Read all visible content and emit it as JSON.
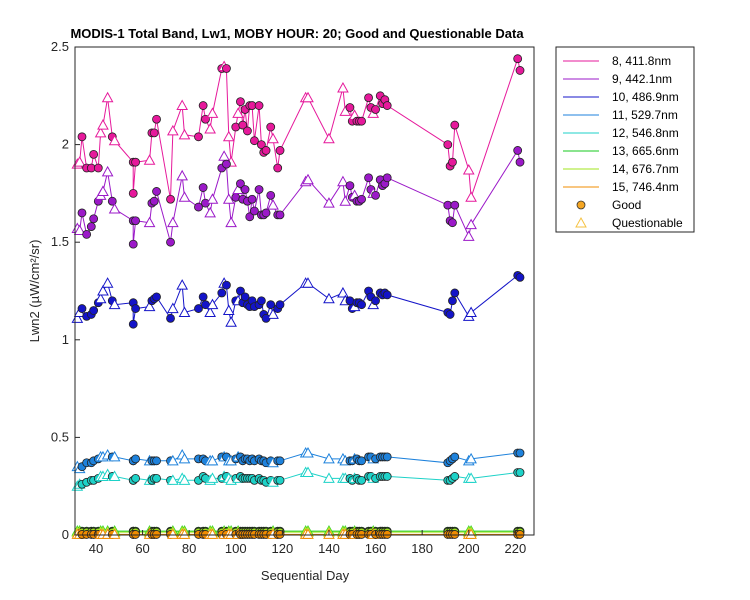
{
  "chart_data": {
    "type": "line",
    "title": "MODIS-1 Total Band, Lw1, MOBY HOUR: 20;  Good and Questionable Data",
    "xlabel": "Sequential Day",
    "ylabel": "Lwn2 (µW/cm²/sr)",
    "xlim": [
      31,
      228
    ],
    "ylim": [
      0,
      2.5
    ],
    "xticks": [
      40,
      60,
      80,
      100,
      120,
      140,
      160,
      180,
      200,
      220
    ],
    "yticks": [
      0,
      0.5,
      1,
      1.5,
      2,
      2.5
    ],
    "ytick_labels": [
      "0",
      "0.5",
      "1",
      "1.5",
      "2",
      "2.5"
    ],
    "grid": false,
    "legend_position": "outside-top-right",
    "legend": [
      {
        "label": "8, 411.8nm",
        "color": "#E6199B"
      },
      {
        "label": "9, 442.1nm",
        "color": "#9B19C8"
      },
      {
        "label": "10, 486.9nm",
        "color": "#1414C8"
      },
      {
        "label": "11, 529.7nm",
        "color": "#1E82DC"
      },
      {
        "label": "12, 546.8nm",
        "color": "#1ED2C8"
      },
      {
        "label": "13, 665.6nm",
        "color": "#14C81E"
      },
      {
        "label": "14, 676.7nm",
        "color": "#A0E61E"
      },
      {
        "label": "15, 746.4nm",
        "color": "#F08C00"
      },
      {
        "label": "Good",
        "marker": "circle",
        "color": "#F5A623"
      },
      {
        "label": "Questionable",
        "marker": "triangle",
        "color": "#F5C242"
      }
    ],
    "x": [
      32,
      33,
      34,
      36,
      38,
      39,
      41,
      42,
      43,
      45,
      47,
      48,
      56,
      56,
      57,
      63,
      64,
      65,
      66,
      72,
      73,
      77,
      78,
      84,
      86,
      87,
      89,
      90,
      94,
      95,
      96,
      97,
      98,
      100,
      101,
      102,
      103,
      104,
      105,
      106,
      107,
      108,
      110,
      111,
      112,
      113,
      115,
      116,
      118,
      119,
      130,
      131,
      140,
      146,
      147,
      149,
      150,
      151,
      152,
      153,
      154,
      157,
      158,
      159,
      160,
      162,
      163,
      164,
      165,
      191,
      192,
      193,
      194,
      200,
      201,
      221,
      222
    ],
    "quality": [
      "q",
      "q",
      "g",
      "g",
      "g",
      "g",
      "g",
      "q",
      "q",
      "q",
      "g",
      "q",
      "g",
      "g",
      "g",
      "q",
      "g",
      "g",
      "g",
      "g",
      "q",
      "q",
      "q",
      "g",
      "g",
      "g",
      "q",
      "q",
      "g",
      "q",
      "g",
      "q",
      "q",
      "g",
      "q",
      "g",
      "g",
      "g",
      "g",
      "g",
      "g",
      "g",
      "g",
      "g",
      "g",
      "g",
      "g",
      "q",
      "g",
      "g",
      "q",
      "q",
      "q",
      "q",
      "q",
      "g",
      "g",
      "q",
      "g",
      "g",
      "g",
      "g",
      "g",
      "q",
      "g",
      "g",
      "g",
      "g",
      "g",
      "g",
      "g",
      "g",
      "g",
      "q",
      "q",
      "g",
      "g"
    ],
    "series": [
      {
        "name": "8, 411.8nm",
        "values": [
          1.9,
          1.91,
          2.04,
          1.88,
          1.88,
          1.95,
          1.88,
          2.06,
          2.1,
          2.24,
          2.04,
          2.02,
          1.91,
          1.75,
          1.91,
          1.92,
          2.06,
          2.06,
          2.13,
          1.72,
          2.07,
          2.2,
          2.05,
          2.04,
          2.2,
          2.13,
          2.08,
          2.16,
          2.39,
          2.4,
          2.39,
          2.04,
          1.91,
          2.09,
          2.16,
          2.22,
          2.1,
          2.18,
          2.07,
          2.2,
          2.2,
          2.02,
          2.2,
          2.0,
          1.96,
          1.97,
          2.09,
          2.03,
          1.88,
          1.97,
          2.24,
          2.24,
          2.03,
          2.29,
          2.17,
          2.19,
          2.12,
          2.15,
          2.12,
          2.12,
          2.12,
          2.24,
          2.19,
          2.16,
          2.18,
          2.25,
          2.21,
          2.23,
          2.2,
          2.0,
          1.89,
          1.91,
          2.1,
          1.87,
          1.73,
          2.44,
          2.38
        ]
      },
      {
        "name": "9, 442.1nm",
        "values": [
          1.57,
          1.56,
          1.65,
          1.54,
          1.58,
          1.62,
          1.71,
          1.74,
          1.76,
          1.86,
          1.71,
          1.67,
          1.61,
          1.49,
          1.61,
          1.6,
          1.7,
          1.71,
          1.76,
          1.5,
          1.6,
          1.84,
          1.73,
          1.68,
          1.78,
          1.7,
          1.65,
          1.72,
          1.88,
          1.94,
          1.9,
          1.72,
          1.6,
          1.73,
          1.77,
          1.8,
          1.72,
          1.77,
          1.71,
          1.63,
          1.72,
          1.66,
          1.77,
          1.64,
          1.64,
          1.65,
          1.74,
          1.69,
          1.64,
          1.64,
          1.81,
          1.82,
          1.7,
          1.81,
          1.71,
          1.79,
          1.73,
          1.74,
          1.71,
          1.71,
          1.72,
          1.83,
          1.77,
          1.75,
          1.74,
          1.82,
          1.79,
          1.8,
          1.83,
          1.69,
          1.61,
          1.6,
          1.69,
          1.53,
          1.59,
          1.97,
          1.91
        ]
      },
      {
        "name": "10, 486.9nm",
        "values": [
          1.11,
          1.14,
          1.16,
          1.12,
          1.13,
          1.15,
          1.19,
          1.21,
          1.25,
          1.29,
          1.2,
          1.18,
          1.19,
          1.08,
          1.16,
          1.17,
          1.2,
          1.21,
          1.22,
          1.11,
          1.16,
          1.28,
          1.14,
          1.16,
          1.22,
          1.18,
          1.14,
          1.18,
          1.24,
          1.29,
          1.28,
          1.15,
          1.09,
          1.2,
          1.2,
          1.25,
          1.19,
          1.22,
          1.18,
          1.17,
          1.2,
          1.17,
          1.18,
          1.2,
          1.13,
          1.11,
          1.18,
          1.13,
          1.16,
          1.18,
          1.29,
          1.29,
          1.21,
          1.24,
          1.2,
          1.2,
          1.16,
          1.17,
          1.19,
          1.19,
          1.18,
          1.25,
          1.22,
          1.18,
          1.2,
          1.24,
          1.23,
          1.24,
          1.23,
          1.14,
          1.13,
          1.2,
          1.24,
          1.12,
          1.14,
          1.33,
          1.32
        ]
      },
      {
        "name": "11, 529.7nm",
        "values": [
          0.35,
          0.34,
          0.35,
          0.37,
          0.37,
          0.38,
          0.39,
          0.4,
          0.4,
          0.41,
          0.4,
          0.4,
          0.38,
          0.38,
          0.39,
          0.38,
          0.38,
          0.38,
          0.38,
          0.38,
          0.38,
          0.41,
          0.39,
          0.39,
          0.39,
          0.38,
          0.38,
          0.38,
          0.4,
          0.4,
          0.4,
          0.38,
          0.38,
          0.39,
          0.4,
          0.4,
          0.38,
          0.39,
          0.39,
          0.38,
          0.39,
          0.38,
          0.39,
          0.38,
          0.38,
          0.37,
          0.38,
          0.37,
          0.38,
          0.38,
          0.42,
          0.42,
          0.39,
          0.39,
          0.38,
          0.38,
          0.38,
          0.39,
          0.39,
          0.38,
          0.38,
          0.4,
          0.4,
          0.39,
          0.39,
          0.4,
          0.4,
          0.4,
          0.4,
          0.37,
          0.38,
          0.39,
          0.4,
          0.38,
          0.39,
          0.42,
          0.42
        ]
      },
      {
        "name": "12, 546.8nm",
        "values": [
          0.25,
          0.26,
          0.26,
          0.27,
          0.28,
          0.28,
          0.29,
          0.3,
          0.3,
          0.31,
          0.3,
          0.3,
          0.28,
          0.28,
          0.29,
          0.28,
          0.28,
          0.29,
          0.29,
          0.28,
          0.28,
          0.29,
          0.28,
          0.28,
          0.3,
          0.29,
          0.28,
          0.29,
          0.29,
          0.3,
          0.3,
          0.29,
          0.28,
          0.29,
          0.29,
          0.3,
          0.29,
          0.29,
          0.29,
          0.29,
          0.29,
          0.28,
          0.29,
          0.28,
          0.28,
          0.27,
          0.28,
          0.27,
          0.28,
          0.28,
          0.32,
          0.32,
          0.29,
          0.29,
          0.29,
          0.29,
          0.28,
          0.29,
          0.29,
          0.28,
          0.28,
          0.3,
          0.3,
          0.29,
          0.29,
          0.3,
          0.3,
          0.3,
          0.3,
          0.28,
          0.28,
          0.29,
          0.3,
          0.29,
          0.29,
          0.32,
          0.32
        ]
      },
      {
        "name": "13, 665.6nm",
        "values": [
          0.02,
          0.02,
          0.02,
          0.02,
          0.02,
          0.02,
          0.02,
          0.02,
          0.02,
          0.02,
          0.02,
          0.02,
          0.02,
          0.02,
          0.02,
          0.02,
          0.02,
          0.02,
          0.02,
          0.02,
          0.02,
          0.02,
          0.02,
          0.02,
          0.02,
          0.02,
          0.02,
          0.02,
          0.02,
          0.02,
          0.02,
          0.02,
          0.02,
          0.02,
          0.02,
          0.02,
          0.02,
          0.02,
          0.02,
          0.02,
          0.02,
          0.02,
          0.02,
          0.02,
          0.02,
          0.02,
          0.02,
          0.02,
          0.02,
          0.02,
          0.02,
          0.02,
          0.02,
          0.02,
          0.02,
          0.02,
          0.02,
          0.02,
          0.02,
          0.02,
          0.02,
          0.02,
          0.02,
          0.02,
          0.02,
          0.02,
          0.02,
          0.02,
          0.02,
          0.02,
          0.02,
          0.02,
          0.02,
          0.02,
          0.02,
          0.02,
          0.02
        ]
      },
      {
        "name": "14, 676.7nm",
        "values": [
          0.015,
          0.015,
          0.015,
          0.015,
          0.015,
          0.015,
          0.015,
          0.015,
          0.015,
          0.015,
          0.015,
          0.015,
          0.015,
          0.015,
          0.015,
          0.015,
          0.015,
          0.015,
          0.015,
          0.015,
          0.015,
          0.015,
          0.015,
          0.015,
          0.015,
          0.015,
          0.015,
          0.015,
          0.015,
          0.015,
          0.015,
          0.015,
          0.015,
          0.015,
          0.015,
          0.015,
          0.015,
          0.015,
          0.015,
          0.015,
          0.015,
          0.015,
          0.015,
          0.015,
          0.015,
          0.015,
          0.015,
          0.015,
          0.015,
          0.015,
          0.015,
          0.015,
          0.015,
          0.015,
          0.015,
          0.015,
          0.015,
          0.015,
          0.015,
          0.015,
          0.015,
          0.015,
          0.015,
          0.015,
          0.015,
          0.015,
          0.015,
          0.015,
          0.015,
          0.015,
          0.015,
          0.015,
          0.015,
          0.015,
          0.015,
          0.015,
          0.015
        ]
      },
      {
        "name": "15, 746.4nm",
        "values": [
          0.003,
          0.003,
          0.003,
          0.003,
          0.003,
          0.003,
          0.003,
          0.003,
          0.003,
          0.003,
          0.003,
          0.003,
          0.003,
          0.003,
          0.003,
          0.003,
          0.003,
          0.003,
          0.003,
          0.003,
          0.003,
          0.003,
          0.003,
          0.003,
          0.003,
          0.003,
          0.003,
          0.003,
          0.003,
          0.003,
          0.003,
          0.003,
          0.003,
          0.003,
          0.003,
          0.003,
          0.003,
          0.003,
          0.003,
          0.003,
          0.003,
          0.003,
          0.003,
          0.003,
          0.003,
          0.003,
          0.003,
          0.003,
          0.003,
          0.003,
          0.003,
          0.003,
          0.003,
          0.003,
          0.003,
          0.003,
          0.003,
          0.003,
          0.003,
          0.003,
          0.003,
          0.003,
          0.003,
          0.003,
          0.003,
          0.003,
          0.003,
          0.003,
          0.003,
          0.003,
          0.003,
          0.003,
          0.003,
          0.003,
          0.003,
          0.003,
          0.003
        ]
      }
    ]
  }
}
